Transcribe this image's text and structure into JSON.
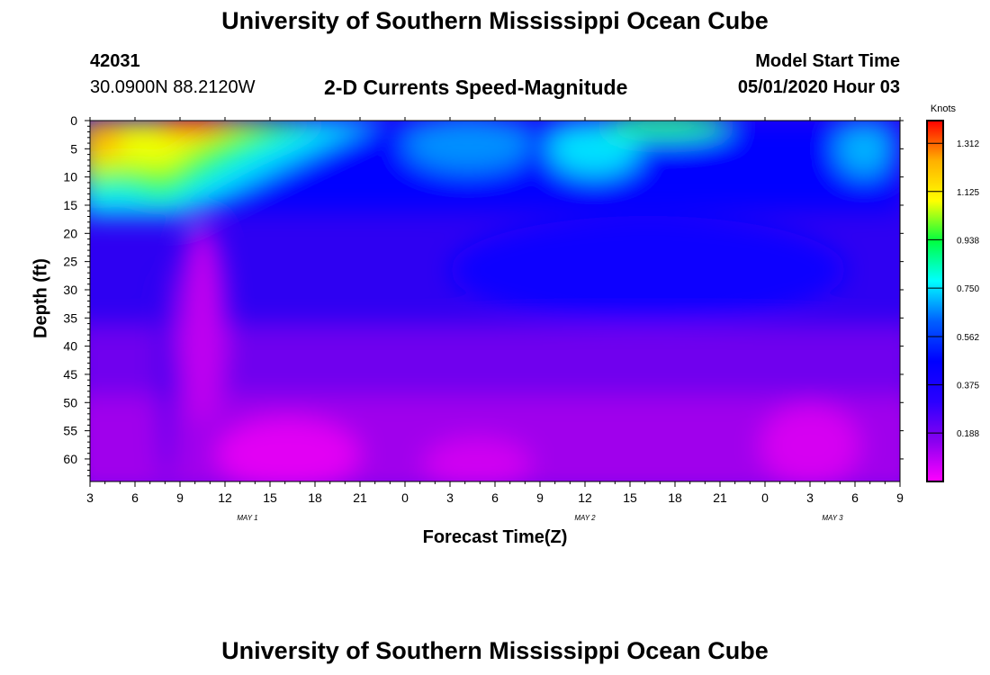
{
  "page": {
    "title_top": "University of Southern Mississippi Ocean Cube",
    "title_bottom": "University of Southern Mississippi Ocean Cube",
    "station_id": "42031",
    "station_coords": "30.0900N 88.2120W",
    "plot_title": "2-D Currents Speed-Magnitude",
    "model_start_label": "Model Start Time",
    "model_start_value": "05/01/2020 Hour 03"
  },
  "chart_data": {
    "type": "heatmap",
    "title": "2-D Currents Speed-Magnitude",
    "xlabel": "Forecast Time(Z)",
    "ylabel": "Depth (ft)",
    "x_ticks": [
      "3",
      "6",
      "9",
      "12",
      "15",
      "18",
      "21",
      "0",
      "3",
      "6",
      "9",
      "12",
      "15",
      "18",
      "21",
      "0",
      "3",
      "6",
      "9"
    ],
    "x_hours": [
      0,
      3,
      6,
      9,
      12,
      15,
      18,
      21,
      24,
      27,
      30,
      33,
      36,
      39,
      42,
      45,
      48,
      51,
      54
    ],
    "date_labels": [
      {
        "text": "MAY 1",
        "hour": 10.5
      },
      {
        "text": "MAY 2",
        "hour": 33
      },
      {
        "text": "MAY 3",
        "hour": 49.5
      }
    ],
    "y_ticks": [
      0,
      5,
      10,
      15,
      20,
      25,
      30,
      35,
      40,
      45,
      50,
      55,
      60
    ],
    "ylim": [
      0,
      64
    ],
    "colorbar": {
      "label": "Knots",
      "ticks": [
        "1.312",
        "1.125",
        "0.938",
        "0.750",
        "0.562",
        "0.375",
        "0.188"
      ],
      "tick_values": [
        1.312,
        1.125,
        0.938,
        0.75,
        0.562,
        0.375,
        0.188
      ],
      "range": [
        0,
        1.4
      ],
      "colors": [
        "#ff00ff",
        "#8a00f0",
        "#2a00ff",
        "#0000ff",
        "#0060ff",
        "#00ffff",
        "#00ff40",
        "#ffff00",
        "#ffb000",
        "#ff0000"
      ]
    }
  }
}
